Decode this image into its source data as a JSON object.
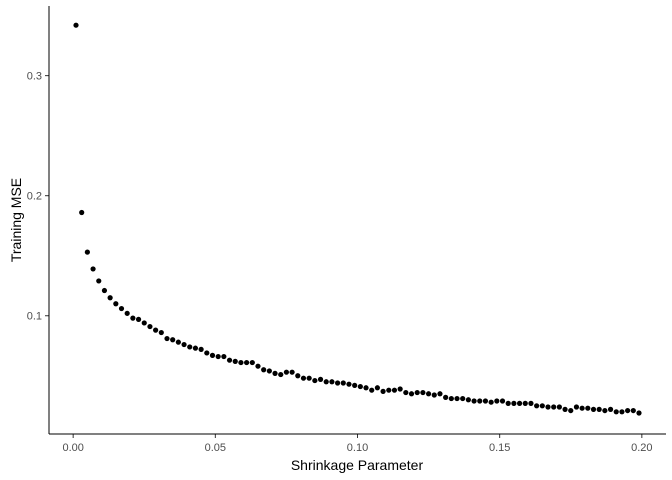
{
  "chart_data": {
    "type": "scatter",
    "xlabel": "Shrinkage Parameter",
    "ylabel": "Training MSE",
    "xlim": [
      -0.0085,
      0.2085
    ],
    "ylim": [
      0.0015,
      0.358
    ],
    "xticks": [
      0.0,
      0.05,
      0.1,
      0.15,
      0.2
    ],
    "xtick_labels": [
      "0.00",
      "0.05",
      "0.10",
      "0.15",
      "0.20"
    ],
    "yticks": [
      0.1,
      0.2,
      0.3
    ],
    "ytick_labels": [
      "0.1",
      "0.2",
      "0.3"
    ],
    "grid": false,
    "point_color": "#000000",
    "x": [
      0.001,
      0.003,
      0.005,
      0.007,
      0.009,
      0.011,
      0.013,
      0.015,
      0.017,
      0.019,
      0.021,
      0.023,
      0.025,
      0.027,
      0.029,
      0.031,
      0.033,
      0.035,
      0.037,
      0.039,
      0.041,
      0.043,
      0.045,
      0.047,
      0.049,
      0.051,
      0.053,
      0.055,
      0.057,
      0.059,
      0.061,
      0.063,
      0.065,
      0.067,
      0.069,
      0.071,
      0.073,
      0.075,
      0.077,
      0.079,
      0.081,
      0.083,
      0.085,
      0.087,
      0.089,
      0.091,
      0.093,
      0.095,
      0.097,
      0.099,
      0.101,
      0.103,
      0.105,
      0.107,
      0.109,
      0.111,
      0.113,
      0.115,
      0.117,
      0.119,
      0.121,
      0.123,
      0.125,
      0.127,
      0.129,
      0.131,
      0.133,
      0.135,
      0.137,
      0.139,
      0.141,
      0.143,
      0.145,
      0.147,
      0.149,
      0.151,
      0.153,
      0.155,
      0.157,
      0.159,
      0.161,
      0.163,
      0.165,
      0.167,
      0.169,
      0.171,
      0.173,
      0.175,
      0.177,
      0.179,
      0.181,
      0.183,
      0.185,
      0.187,
      0.189,
      0.191,
      0.193,
      0.195,
      0.197,
      0.199
    ],
    "y": [
      0.342,
      0.186,
      0.153,
      0.139,
      0.129,
      0.121,
      0.115,
      0.11,
      0.106,
      0.102,
      0.098,
      0.097,
      0.094,
      0.091,
      0.088,
      0.086,
      0.081,
      0.08,
      0.078,
      0.076,
      0.074,
      0.073,
      0.072,
      0.069,
      0.067,
      0.066,
      0.066,
      0.063,
      0.062,
      0.061,
      0.061,
      0.061,
      0.058,
      0.055,
      0.054,
      0.052,
      0.051,
      0.053,
      0.053,
      0.05,
      0.048,
      0.048,
      0.046,
      0.047,
      0.045,
      0.045,
      0.044,
      0.044,
      0.043,
      0.042,
      0.041,
      0.04,
      0.038,
      0.04,
      0.037,
      0.038,
      0.038,
      0.039,
      0.036,
      0.035,
      0.036,
      0.036,
      0.035,
      0.034,
      0.035,
      0.032,
      0.031,
      0.031,
      0.031,
      0.03,
      0.029,
      0.029,
      0.029,
      0.028,
      0.029,
      0.029,
      0.027,
      0.027,
      0.027,
      0.027,
      0.027,
      0.025,
      0.025,
      0.024,
      0.024,
      0.024,
      0.022,
      0.021,
      0.024,
      0.023,
      0.023,
      0.022,
      0.022,
      0.021,
      0.022,
      0.02,
      0.02,
      0.021,
      0.021,
      0.019
    ]
  }
}
